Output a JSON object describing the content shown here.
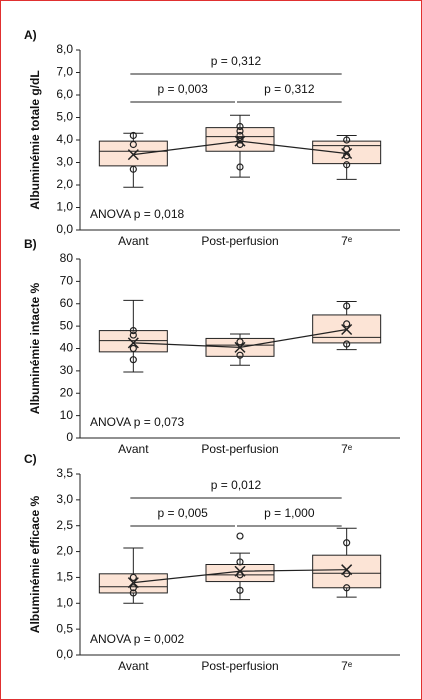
{
  "chart_data": [
    {
      "type": "box",
      "panel": "A)",
      "ylabel": "Albuminémie totale g/dL",
      "annotation": "ANOVA p = 0,018",
      "categories": [
        "Avant",
        "Post-perfusion",
        "7ᵉ"
      ],
      "color": "#fce4d6",
      "ylim": [
        0,
        8
      ],
      "yticks": [
        {
          "value": 0,
          "label": "0,0"
        },
        {
          "value": 1,
          "label": "1,0"
        },
        {
          "value": 2,
          "label": "2,0"
        },
        {
          "value": 3,
          "label": "3,0"
        },
        {
          "value": 4,
          "label": "4,0"
        },
        {
          "value": 5,
          "label": "5,0"
        },
        {
          "value": 6,
          "label": "6,0"
        },
        {
          "value": 7,
          "label": "7,0"
        },
        {
          "value": 8,
          "label": "8,0"
        }
      ],
      "boxes": [
        {
          "whisker_low": 1.9,
          "q1": 2.85,
          "median": 3.5,
          "q3": 3.95,
          "whisker_high": 4.3,
          "mean": 3.35,
          "points": [
            4.2,
            3.8,
            2.7
          ]
        },
        {
          "whisker_low": 2.35,
          "q1": 3.5,
          "median": 4.15,
          "q3": 4.55,
          "whisker_high": 5.1,
          "mean": 3.95,
          "points": [
            4.6,
            4.4,
            4.2,
            4.0,
            3.8,
            2.8
          ]
        },
        {
          "whisker_low": 2.25,
          "q1": 2.95,
          "median": 3.75,
          "q3": 3.95,
          "whisker_high": 4.2,
          "mean": 3.4,
          "points": [
            4.0,
            3.6,
            3.3,
            2.9
          ]
        }
      ],
      "comparisons": [
        {
          "label": "p = 0,003",
          "from": "Avant",
          "to": "Post-perfusion"
        },
        {
          "label": "p = 0,312",
          "from": "Post-perfusion",
          "to": "7ᵉ"
        },
        {
          "label": "p = 0,312",
          "from": "Avant",
          "to": "7ᵉ"
        }
      ]
    },
    {
      "type": "box",
      "panel": "B)",
      "ylabel": "Albuminémie intacte %",
      "annotation": "ANOVA p = 0,073",
      "categories": [
        "Avant",
        "Post-perfusion",
        "7ᵉ"
      ],
      "color": "#fce4d6",
      "ylim": [
        0,
        80
      ],
      "yticks": [
        0,
        10,
        20,
        30,
        40,
        50,
        60,
        70,
        80
      ],
      "boxes": [
        {
          "whisker_low": 29.5,
          "q1": 38.5,
          "median": 43.5,
          "q3": 48,
          "whisker_high": 61.5,
          "mean": 42.5,
          "points": [
            48,
            46,
            40,
            35
          ]
        },
        {
          "whisker_low": 32.5,
          "q1": 36.5,
          "median": 41.5,
          "q3": 44.5,
          "whisker_high": 46.5,
          "mean": 40.5,
          "points": [
            43,
            37
          ]
        },
        {
          "whisker_low": 39.5,
          "q1": 42.5,
          "median": 45,
          "q3": 55,
          "whisker_high": 61,
          "mean": 48.5,
          "points": [
            59,
            51,
            42
          ]
        }
      ],
      "comparisons": []
    },
    {
      "type": "box",
      "panel": "C)",
      "ylabel": "Albuminémie efficace %",
      "annotation": "ANOVA p = 0,002",
      "categories": [
        "Avant",
        "Post-perfusion",
        "7ᵉ"
      ],
      "color": "#fce4d6",
      "ylim": [
        0,
        3.5
      ],
      "yticks": [
        {
          "value": 0,
          "label": "0,0"
        },
        {
          "value": 0.5,
          "label": "0,5"
        },
        {
          "value": 1,
          "label": "1,0"
        },
        {
          "value": 1.5,
          "label": "1,5"
        },
        {
          "value": 2,
          "label": "2,0"
        },
        {
          "value": 2.5,
          "label": "2,5"
        },
        {
          "value": 3,
          "label": "3,0"
        },
        {
          "value": 3.5,
          "label": "3,5"
        }
      ],
      "boxes": [
        {
          "whisker_low": 1.0,
          "q1": 1.2,
          "median": 1.32,
          "q3": 1.57,
          "whisker_high": 2.07,
          "mean": 1.4,
          "points": [
            1.5,
            1.3,
            1.2
          ]
        },
        {
          "whisker_low": 1.07,
          "q1": 1.42,
          "median": 1.55,
          "q3": 1.75,
          "whisker_high": 1.97,
          "mean": 1.62,
          "points": [
            2.3,
            1.8,
            1.55,
            1.25
          ]
        },
        {
          "whisker_low": 1.12,
          "q1": 1.3,
          "median": 1.58,
          "q3": 1.93,
          "whisker_high": 2.45,
          "mean": 1.65,
          "points": [
            2.17,
            1.57,
            1.3
          ]
        }
      ],
      "comparisons": [
        {
          "label": "p = 0,005",
          "from": "Avant",
          "to": "Post-perfusion"
        },
        {
          "label": "p = 1,000",
          "from": "Post-perfusion",
          "to": "7ᵉ"
        },
        {
          "label": "p = 0,012",
          "from": "Avant",
          "to": "7ᵉ"
        }
      ]
    }
  ]
}
